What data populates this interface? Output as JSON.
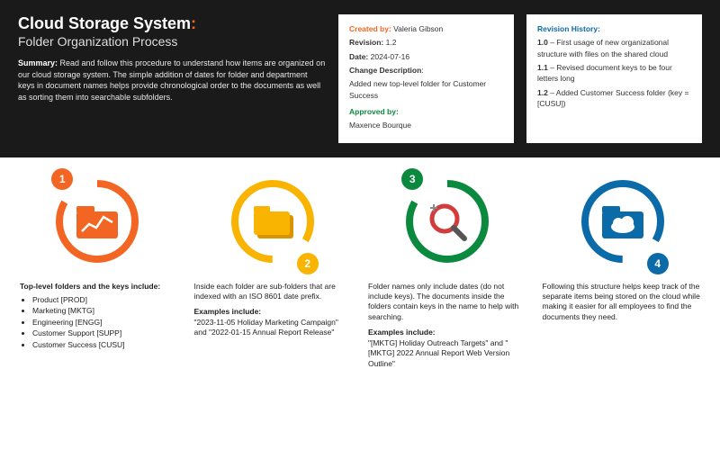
{
  "header": {
    "title_main": "Cloud Storage System",
    "title_punct": ":",
    "subtitle": "Folder Organization Process",
    "summary_label": "Summary:",
    "summary_text": " Read and follow this procedure to understand how items are organized on our cloud storage system. The simple addition of dates for folder and department keys in document names helps provide chronological order to the documents as well as sorting them into searchable subfolders."
  },
  "meta_box": {
    "created_by_label": "Created by:",
    "created_by": "Valeria Gibson",
    "revision_label": "Revision:",
    "revision": "1.2",
    "date_label": "Date:",
    "date": "2024-07-16",
    "change_label": "Change Description",
    "change_text": "Added new top-level folder for Customer Success",
    "approved_label": "Approved by:",
    "approved_by": "Maxence Bourque"
  },
  "history_box": {
    "label": "Revision History:",
    "r10_v": "1.0",
    "r10_t": " – First usage of new organizational structure with files on the shared cloud",
    "r11_v": "1.1",
    "r11_t": " – Revised document keys to be four letters long",
    "r12_v": "1.2",
    "r12_t": " – Added Customer Success folder (key = [CUSU])"
  },
  "steps": [
    {
      "num": "1",
      "color": "#f26522",
      "badge_pos": "tl",
      "icon": "folder-chart"
    },
    {
      "num": "2",
      "color": "#f8b400",
      "badge_pos": "br",
      "icon": "folder-stack"
    },
    {
      "num": "3",
      "color": "#0b8a3f",
      "badge_pos": "tl",
      "icon": "magnify"
    },
    {
      "num": "4",
      "color": "#0b6aa8",
      "badge_pos": "br",
      "icon": "folder-cloud"
    }
  ],
  "descs": {
    "d1_lead": "Top-level folders and the keys include:",
    "d1_items": [
      "Product [PROD]",
      "Marketing [MKTG]",
      "Engineering [ENGG]",
      "Customer Support [SUPP]",
      "Customer Success [CUSU]"
    ],
    "d2_p1": "Inside each folder are sub-folders that are indexed with an ISO 8601 date prefix.",
    "d2_lead": "Examples include:",
    "d2_ex": "\"2023-11-05 Holiday Marketing Campaign\" and \"2022-01-15 Annual Report Release\"",
    "d3_p1": "Folder names only include dates (do not include keys). The documents inside the folders contain keys in the name to help with searching.",
    "d3_lead": "Examples include:",
    "d3_ex": "\"[MKTG] Holiday Outreach Targets\" and \"[MKTG] 2022 Annual Report Web Version Outline\"",
    "d4_p1": "Following this structure helps keep track of the separate items being stored on the cloud while making it easier for all employees to find the documents they need."
  },
  "style": {
    "header_bg": "#1a1a1a",
    "accent_orange": "#f26522",
    "accent_yellow": "#f8b400",
    "accent_green": "#0b8a3f",
    "accent_blue": "#0b6aa8",
    "ring_stroke_width": 8
  }
}
